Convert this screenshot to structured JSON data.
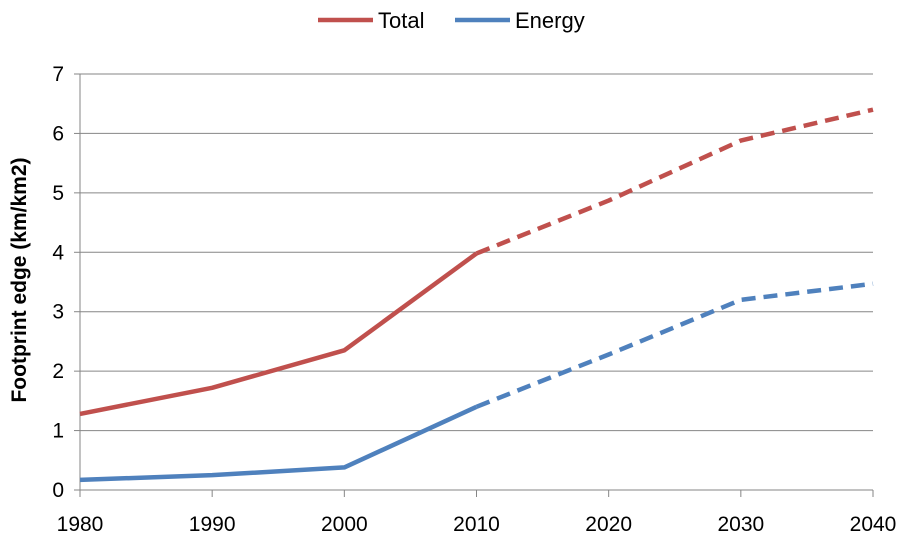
{
  "chart_data": {
    "type": "line",
    "title": "",
    "xlabel": "",
    "ylabel": "Footprint edge (km/km2)",
    "xlim": [
      1980,
      2040
    ],
    "ylim": [
      0,
      7
    ],
    "x_ticks": [
      "1980",
      "1990",
      "2000",
      "2010",
      "2020",
      "2030",
      "2040"
    ],
    "y_ticks": [
      "0",
      "1",
      "2",
      "3",
      "4",
      "5",
      "6",
      "7"
    ],
    "grid": "horizontal",
    "legend_position": "top-center",
    "series": [
      {
        "name": "Total",
        "color": "#C0504D",
        "line_style": "solid to 2010, dashed after",
        "dashed_from": 2010,
        "points": [
          {
            "x": 1980,
            "y": 1.28
          },
          {
            "x": 1990,
            "y": 1.72
          },
          {
            "x": 2000,
            "y": 2.35
          },
          {
            "x": 2010,
            "y": 3.98
          },
          {
            "x": 2020,
            "y": 4.87
          },
          {
            "x": 2030,
            "y": 5.88
          },
          {
            "x": 2040,
            "y": 6.4
          }
        ]
      },
      {
        "name": "Energy",
        "color": "#4F81BD",
        "line_style": "solid to 2010, dashed after",
        "dashed_from": 2010,
        "points": [
          {
            "x": 1980,
            "y": 0.17
          },
          {
            "x": 1990,
            "y": 0.25
          },
          {
            "x": 2000,
            "y": 0.38
          },
          {
            "x": 2010,
            "y": 1.4
          },
          {
            "x": 2020,
            "y": 2.28
          },
          {
            "x": 2030,
            "y": 3.2
          },
          {
            "x": 2040,
            "y": 3.47
          }
        ]
      }
    ]
  }
}
